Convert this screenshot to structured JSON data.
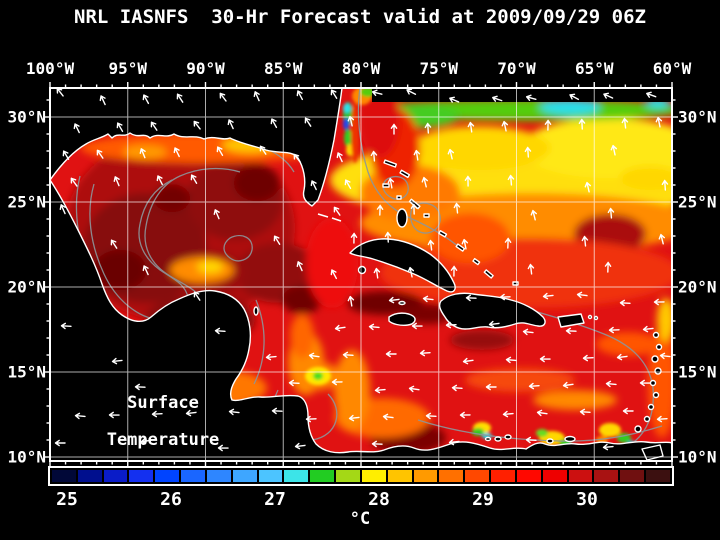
{
  "title": "NRL IASNFS  30-Hr Forecast valid at 2009/09/29 06Z",
  "axes": {
    "top": [
      "100°W",
      "95°W",
      "90°W",
      "85°W",
      "80°W",
      "75°W",
      "70°W",
      "65°W",
      "60°W"
    ],
    "left": [
      "30°N",
      "25°N",
      "20°N",
      "15°N",
      "10°N"
    ],
    "right": [
      "30°N",
      "25°N",
      "20°N",
      "15°N",
      "10°N"
    ]
  },
  "map_annotation": {
    "line1": "Surface",
    "line2": "Temperature"
  },
  "colorbar": {
    "unit": "°C",
    "tick_labels": [
      "25",
      "26",
      "27",
      "28",
      "29",
      "30"
    ],
    "swatches": [
      "#010838",
      "#000f8e",
      "#0a1cc8",
      "#1430f0",
      "#0044ff",
      "#1a66ff",
      "#2e86ff",
      "#3ea6ff",
      "#4cc4ff",
      "#3ce4e8",
      "#22cc22",
      "#a4d816",
      "#ffee00",
      "#ffc400",
      "#ff9a00",
      "#ff7000",
      "#ff4800",
      "#ff2000",
      "#ff0800",
      "#ee0000",
      "#cc1010",
      "#a81212",
      "#701010",
      "#3c1010"
    ]
  },
  "colors": {
    "background": "#000000",
    "sea_base": "#e01212",
    "grid_line": "#ffffff",
    "coastline": "#ffffff",
    "contour": "#8d969b",
    "wind_arrow": "#ffffff",
    "text": "#ffffff"
  }
}
